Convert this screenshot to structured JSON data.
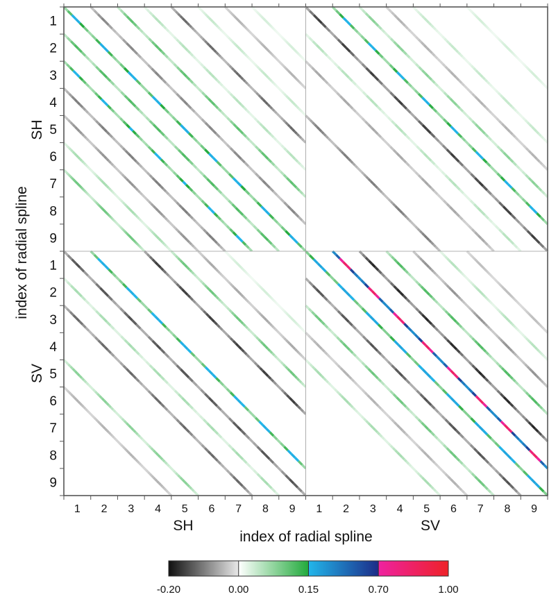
{
  "chart_data": {
    "type": "heatmap",
    "title": "",
    "xlabel": "index of radial spline",
    "ylabel": "index of radial spline",
    "blocks_x": [
      "SH",
      "SV"
    ],
    "blocks_y": [
      "SH",
      "SV"
    ],
    "tick_labels": [
      "1",
      "2",
      "3",
      "4",
      "5",
      "6",
      "7",
      "8",
      "9"
    ],
    "colorbar": {
      "ticks": [
        "-0.20",
        "0.00",
        "0.15",
        "0.70",
        "1.00"
      ],
      "segments": [
        {
          "from": -0.2,
          "to": 0.0,
          "colors": [
            "#101010",
            "#e8e8e8"
          ]
        },
        {
          "from": 0.0,
          "to": 0.15,
          "colors": [
            "#ffffff",
            "#22aa3c"
          ]
        },
        {
          "from": 0.15,
          "to": 0.7,
          "colors": [
            "#22b6ea",
            "#1c2c88"
          ]
        },
        {
          "from": 0.7,
          "to": 1.0,
          "colors": [
            "#ee22a0",
            "#ee2228"
          ]
        }
      ]
    },
    "blocks": [
      {
        "name": "SH-SH",
        "row": 0,
        "col": 0,
        "diagonals": [
          {
            "offset": -6,
            "value": 0.1
          },
          {
            "offset": -5,
            "value": 0.06
          },
          {
            "offset": -4,
            "value": -0.08
          },
          {
            "offset": -3,
            "value": -0.1
          },
          {
            "offset": -2,
            "value": 0.16
          },
          {
            "offset": -1,
            "value": 0.12
          },
          {
            "offset": 0,
            "value": 0.18
          },
          {
            "offset": 1,
            "value": -0.09
          },
          {
            "offset": 2,
            "value": 0.11
          },
          {
            "offset": 3,
            "value": 0.05
          },
          {
            "offset": 4,
            "value": -0.12
          },
          {
            "offset": 5,
            "value": 0.04
          },
          {
            "offset": 6,
            "value": -0.05
          },
          {
            "offset": 7,
            "value": 0.03
          }
        ]
      },
      {
        "name": "SH-SV",
        "row": 0,
        "col": 1,
        "diagonals": [
          {
            "offset": -4,
            "value": -0.1
          },
          {
            "offset": -2,
            "value": -0.06
          },
          {
            "offset": -1,
            "value": 0.05
          },
          {
            "offset": 0,
            "value": -0.16
          },
          {
            "offset": 1,
            "value": 0.17
          },
          {
            "offset": 2,
            "value": 0.08
          },
          {
            "offset": 3,
            "value": -0.05
          },
          {
            "offset": 4,
            "value": 0.04
          },
          {
            "offset": 6,
            "value": 0.03
          }
        ]
      },
      {
        "name": "SV-SH",
        "row": 1,
        "col": 0,
        "diagonals": [
          {
            "offset": -5,
            "value": -0.05
          },
          {
            "offset": -4,
            "value": 0.08
          },
          {
            "offset": -2,
            "value": -0.12
          },
          {
            "offset": -1,
            "value": 0.06
          },
          {
            "offset": 0,
            "value": -0.14
          },
          {
            "offset": 1,
            "value": 0.18
          },
          {
            "offset": 3,
            "value": -0.16
          },
          {
            "offset": 4,
            "value": 0.1
          },
          {
            "offset": 5,
            "value": -0.06
          },
          {
            "offset": 6,
            "value": 0.03
          }
        ]
      },
      {
        "name": "SV-SV",
        "row": 1,
        "col": 1,
        "diagonals": [
          {
            "offset": -4,
            "value": 0.06
          },
          {
            "offset": -3,
            "value": -0.05
          },
          {
            "offset": -2,
            "value": 0.1
          },
          {
            "offset": -1,
            "value": -0.14
          },
          {
            "offset": 0,
            "value": 0.22
          },
          {
            "offset": 1,
            "value": 0.85
          },
          {
            "offset": 2,
            "value": -0.18
          },
          {
            "offset": 3,
            "value": 0.12
          },
          {
            "offset": 4,
            "value": -0.08
          },
          {
            "offset": 5,
            "value": 0.05
          },
          {
            "offset": 6,
            "value": -0.04
          }
        ]
      }
    ]
  }
}
